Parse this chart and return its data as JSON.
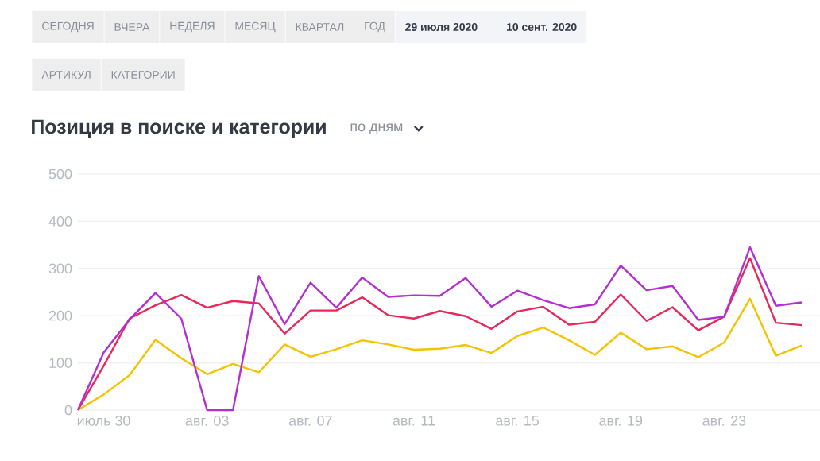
{
  "chart_data": {
    "type": "line",
    "title": "Позиция в поиске и категории",
    "subtitle": "по дням",
    "annotations": [
      "СЕГОДНЯ",
      "ВЧЕРА",
      "НЕДЕЛЯ",
      "МЕСЯЦ",
      "КВАРТАЛ",
      "ГОД",
      "29 июля 2020",
      "10 сент. 2020",
      "АРТИКУЛ",
      "КАТЕГОРИИ"
    ],
    "x": [
      "2020-07-29",
      "2020-07-30",
      "2020-07-31",
      "2020-08-01",
      "2020-08-02",
      "2020-08-03",
      "2020-08-04",
      "2020-08-05",
      "2020-08-06",
      "2020-08-07",
      "2020-08-08",
      "2020-08-09",
      "2020-08-10",
      "2020-08-11",
      "2020-08-12",
      "2020-08-13",
      "2020-08-14",
      "2020-08-15",
      "2020-08-16",
      "2020-08-17",
      "2020-08-18",
      "2020-08-19",
      "2020-08-20",
      "2020-08-21",
      "2020-08-22",
      "2020-08-23",
      "2020-08-24",
      "2020-08-25",
      "2020-08-26"
    ],
    "series": [
      {
        "color": "#f5c200",
        "values": [
          0,
          33,
          74,
          149,
          110,
          76,
          98,
          80,
          139,
          113,
          129,
          148,
          139,
          128,
          130,
          138,
          121,
          157,
          175,
          148,
          117,
          164,
          129,
          135,
          112,
          143,
          236,
          115,
          137
        ]
      },
      {
        "color": "#e8275a",
        "values": [
          0,
          94,
          194,
          222,
          244,
          217,
          231,
          226,
          162,
          211,
          211,
          239,
          201,
          194,
          210,
          199,
          172,
          209,
          219,
          181,
          187,
          245,
          189,
          218,
          169,
          198,
          322,
          185,
          180
        ]
      },
      {
        "color": "#b42fd0",
        "values": [
          0,
          122,
          192,
          248,
          194,
          0,
          0,
          284,
          182,
          270,
          217,
          281,
          240,
          243,
          242,
          280,
          219,
          253,
          233,
          216,
          224,
          306,
          254,
          263,
          191,
          198,
          345,
          221,
          228
        ]
      }
    ],
    "xlim": [
      "2020-07-29",
      "2020-08-26T17:00"
    ],
    "xticks": [
      {
        "value": "2020-07-30",
        "label": "июль 30"
      },
      {
        "value": "2020-08-03",
        "label": "авг. 03"
      },
      {
        "value": "2020-08-07",
        "label": "авг. 07"
      },
      {
        "value": "2020-08-11",
        "label": "авг. 11"
      },
      {
        "value": "2020-08-15",
        "label": "авг. 15"
      },
      {
        "value": "2020-08-19",
        "label": "авг. 19"
      },
      {
        "value": "2020-08-23",
        "label": "авг. 23"
      }
    ],
    "ylim": [
      0,
      500
    ],
    "yticks": [
      0,
      100,
      200,
      300,
      400,
      500
    ],
    "grid": "y",
    "marker": "none",
    "line_style": "solid"
  }
}
